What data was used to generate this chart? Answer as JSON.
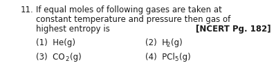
{
  "question_number": "11.",
  "question_text_line1": "If equal moles of following gases are taken at",
  "question_text_line2": "constant temperature and pressure then gas of",
  "question_text_line3": "highest entropy is",
  "reference": "[NCERT Pg. 182]",
  "bg_color": "#ffffff",
  "text_color": "#1a1a1a",
  "font_size": 8.5,
  "font_size_sub": 6.2
}
